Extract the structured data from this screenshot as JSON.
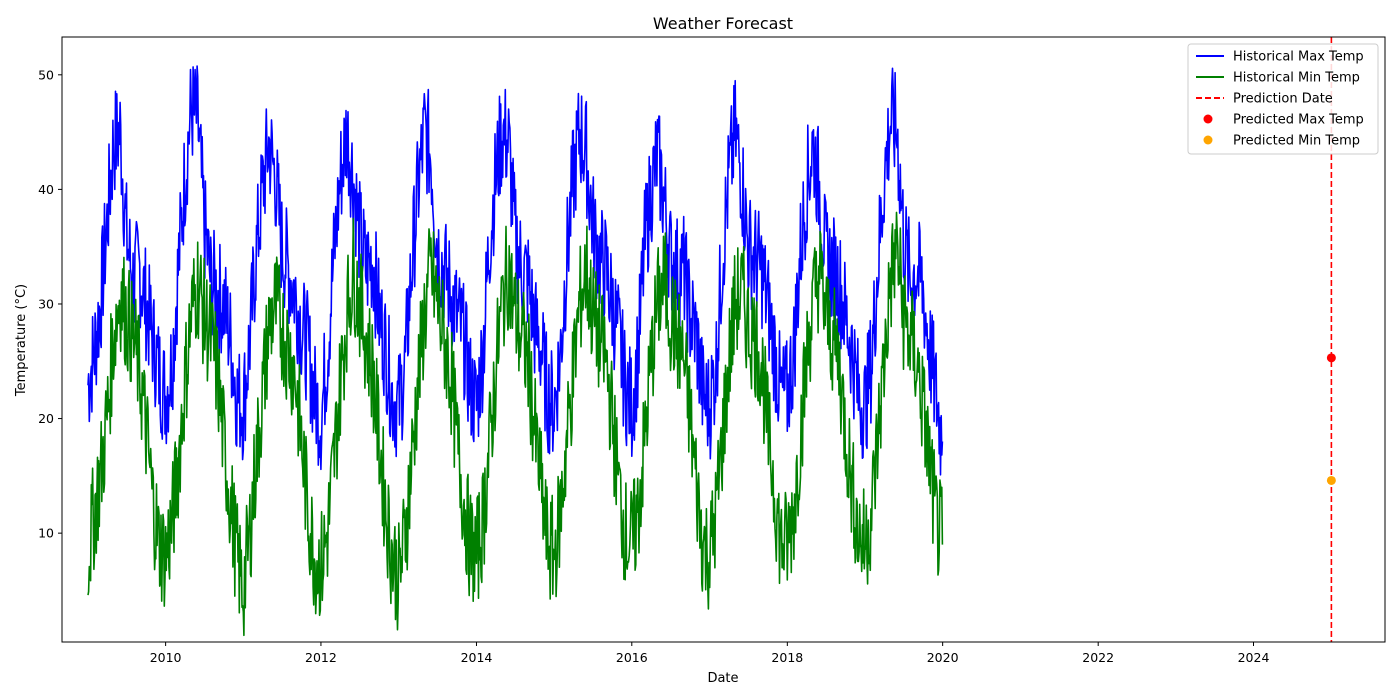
{
  "chart_data": {
    "type": "line",
    "title": "Weather Forecast",
    "xlabel": "Date",
    "ylabel": "Temperature (°C)",
    "xlim": [
      "2008-09-01",
      "2025-09-10"
    ],
    "ylim": [
      0.5,
      53.3
    ],
    "x_ticks": [
      "2010",
      "2012",
      "2014",
      "2016",
      "2018",
      "2020",
      "2022",
      "2024"
    ],
    "y_ticks": [
      10,
      20,
      30,
      40,
      50
    ],
    "grid": false,
    "legend_position": "top-right",
    "series": [
      {
        "name": "Historical Max Temp",
        "style": "line",
        "color": "#0000ff",
        "x": [
          "2009-01-01",
          "2009-02-01",
          "2009-03-01",
          "2009-04-01",
          "2009-05-01",
          "2009-06-01",
          "2009-07-01",
          "2009-08-01",
          "2009-09-01",
          "2009-10-01",
          "2009-11-01",
          "2009-12-01",
          "2010-01-01",
          "2010-02-01",
          "2010-03-01",
          "2010-04-01",
          "2010-05-01",
          "2010-06-01",
          "2010-07-01",
          "2010-08-01",
          "2010-09-01",
          "2010-10-01",
          "2010-11-01",
          "2010-12-01",
          "2011-01-01",
          "2011-02-01",
          "2011-03-01",
          "2011-04-01",
          "2011-05-01",
          "2011-06-01",
          "2011-07-01",
          "2011-08-01",
          "2011-09-01",
          "2011-10-01",
          "2011-11-01",
          "2011-12-01",
          "2012-01-01",
          "2012-02-01",
          "2012-03-01",
          "2012-04-01",
          "2012-05-01",
          "2012-06-01",
          "2012-07-01",
          "2012-08-01",
          "2012-09-01",
          "2012-10-01",
          "2012-11-01",
          "2012-12-01",
          "2013-01-01",
          "2013-02-01",
          "2013-03-01",
          "2013-04-01",
          "2013-05-01",
          "2013-06-01",
          "2013-07-01",
          "2013-08-01",
          "2013-09-01",
          "2013-10-01",
          "2013-11-01",
          "2013-12-01",
          "2014-01-01",
          "2014-02-01",
          "2014-03-01",
          "2014-04-01",
          "2014-05-01",
          "2014-06-01",
          "2014-07-01",
          "2014-08-01",
          "2014-09-01",
          "2014-10-01",
          "2014-11-01",
          "2014-12-01",
          "2015-01-01",
          "2015-02-01",
          "2015-03-01",
          "2015-04-01",
          "2015-05-01",
          "2015-06-01",
          "2015-07-01",
          "2015-08-01",
          "2015-09-01",
          "2015-10-01",
          "2015-11-01",
          "2015-12-01",
          "2016-01-01",
          "2016-02-01",
          "2016-03-01",
          "2016-04-01",
          "2016-05-01",
          "2016-06-01",
          "2016-07-01",
          "2016-08-01",
          "2016-09-01",
          "2016-10-01",
          "2016-11-01",
          "2016-12-01",
          "2017-01-01",
          "2017-02-01",
          "2017-03-01",
          "2017-04-01",
          "2017-05-01",
          "2017-06-01",
          "2017-07-01",
          "2017-08-01",
          "2017-09-01",
          "2017-10-01",
          "2017-11-01",
          "2017-12-01",
          "2018-01-01",
          "2018-02-01",
          "2018-03-01",
          "2018-04-01",
          "2018-05-01",
          "2018-06-01",
          "2018-07-01",
          "2018-08-01",
          "2018-09-01",
          "2018-10-01",
          "2018-11-01",
          "2018-12-01",
          "2019-01-01",
          "2019-02-01",
          "2019-03-01",
          "2019-04-01",
          "2019-05-01",
          "2019-06-01",
          "2019-07-01",
          "2019-08-01",
          "2019-09-01",
          "2019-10-01",
          "2019-11-01",
          "2019-12-01",
          "2019-12-31"
        ],
        "values": [
          23,
          26,
          30,
          37,
          44,
          45,
          36,
          32,
          33,
          30,
          27,
          24,
          22,
          25,
          33,
          41,
          47,
          46,
          37,
          32,
          31,
          30,
          27,
          22,
          21,
          27,
          34,
          40,
          44,
          41,
          35,
          33,
          31,
          28,
          26,
          22,
          20,
          26,
          34,
          41,
          45,
          41,
          36,
          33,
          34,
          29,
          26,
          22,
          21,
          25,
          33,
          40,
          45,
          43,
          35,
          33,
          31,
          29,
          27,
          23,
          21,
          26,
          35,
          41,
          45,
          44,
          36,
          33,
          32,
          28,
          26,
          22,
          21,
          26,
          34,
          41,
          45,
          43,
          37,
          34,
          33,
          30,
          27,
          23,
          21,
          26,
          35,
          40,
          43,
          39,
          34,
          33,
          33,
          29,
          27,
          22,
          21,
          25,
          34,
          41,
          45,
          41,
          35,
          34,
          33,
          30,
          26,
          22,
          22,
          26,
          34,
          40,
          44,
          40,
          34,
          33,
          32,
          29,
          26,
          22,
          21,
          25,
          33,
          41,
          46,
          45,
          36,
          32,
          33,
          31,
          26,
          22,
          18
        ]
      },
      {
        "name": "Historical Min Temp",
        "style": "line",
        "color": "#008000",
        "x": [
          "2009-01-01",
          "2009-02-01",
          "2009-03-01",
          "2009-04-01",
          "2009-05-01",
          "2009-06-01",
          "2009-07-01",
          "2009-08-01",
          "2009-09-01",
          "2009-10-01",
          "2009-11-01",
          "2009-12-01",
          "2010-01-01",
          "2010-02-01",
          "2010-03-01",
          "2010-04-01",
          "2010-05-01",
          "2010-06-01",
          "2010-07-01",
          "2010-08-01",
          "2010-09-01",
          "2010-10-01",
          "2010-11-01",
          "2010-12-01",
          "2011-01-01",
          "2011-02-01",
          "2011-03-01",
          "2011-04-01",
          "2011-05-01",
          "2011-06-01",
          "2011-07-01",
          "2011-08-01",
          "2011-09-01",
          "2011-10-01",
          "2011-11-01",
          "2011-12-01",
          "2012-01-01",
          "2012-02-01",
          "2012-03-01",
          "2012-04-01",
          "2012-05-01",
          "2012-06-01",
          "2012-07-01",
          "2012-08-01",
          "2012-09-01",
          "2012-10-01",
          "2012-11-01",
          "2012-12-01",
          "2013-01-01",
          "2013-02-01",
          "2013-03-01",
          "2013-04-01",
          "2013-05-01",
          "2013-06-01",
          "2013-07-01",
          "2013-08-01",
          "2013-09-01",
          "2013-10-01",
          "2013-11-01",
          "2013-12-01",
          "2014-01-01",
          "2014-02-01",
          "2014-03-01",
          "2014-04-01",
          "2014-05-01",
          "2014-06-01",
          "2014-07-01",
          "2014-08-01",
          "2014-09-01",
          "2014-10-01",
          "2014-11-01",
          "2014-12-01",
          "2015-01-01",
          "2015-02-01",
          "2015-03-01",
          "2015-04-01",
          "2015-05-01",
          "2015-06-01",
          "2015-07-01",
          "2015-08-01",
          "2015-09-01",
          "2015-10-01",
          "2015-11-01",
          "2015-12-01",
          "2016-01-01",
          "2016-02-01",
          "2016-03-01",
          "2016-04-01",
          "2016-05-01",
          "2016-06-01",
          "2016-07-01",
          "2016-08-01",
          "2016-09-01",
          "2016-10-01",
          "2016-11-01",
          "2016-12-01",
          "2017-01-01",
          "2017-02-01",
          "2017-03-01",
          "2017-04-01",
          "2017-05-01",
          "2017-06-01",
          "2017-07-01",
          "2017-08-01",
          "2017-09-01",
          "2017-10-01",
          "2017-11-01",
          "2017-12-01",
          "2018-01-01",
          "2018-02-01",
          "2018-03-01",
          "2018-04-01",
          "2018-05-01",
          "2018-06-01",
          "2018-07-01",
          "2018-08-01",
          "2018-09-01",
          "2018-10-01",
          "2018-11-01",
          "2018-12-01",
          "2019-01-01",
          "2019-02-01",
          "2019-03-01",
          "2019-04-01",
          "2019-05-01",
          "2019-06-01",
          "2019-07-01",
          "2019-08-01",
          "2019-09-01",
          "2019-10-01",
          "2019-11-01",
          "2019-12-01",
          "2019-12-31"
        ],
        "values": [
          8,
          12,
          15,
          20,
          27,
          31,
          29,
          27,
          24,
          19,
          13,
          9,
          8,
          11,
          16,
          23,
          29,
          32,
          29,
          27,
          24,
          18,
          13,
          8,
          5,
          10,
          16,
          22,
          28,
          30,
          28,
          26,
          24,
          18,
          12,
          8,
          7,
          10,
          16,
          23,
          29,
          33,
          30,
          27,
          24,
          18,
          12,
          8,
          6,
          10,
          16,
          23,
          29,
          33,
          30,
          27,
          24,
          18,
          13,
          9,
          8,
          11,
          17,
          24,
          30,
          33,
          29,
          27,
          25,
          19,
          14,
          9,
          8,
          12,
          18,
          24,
          30,
          33,
          29,
          27,
          25,
          20,
          14,
          10,
          9,
          12,
          18,
          25,
          30,
          32,
          29,
          27,
          25,
          20,
          14,
          9,
          8,
          12,
          18,
          25,
          30,
          31,
          28,
          27,
          25,
          19,
          14,
          9,
          9,
          12,
          18,
          25,
          30,
          33,
          29,
          27,
          25,
          19,
          14,
          10,
          9,
          12,
          18,
          25,
          32,
          35,
          29,
          27,
          25,
          21,
          16,
          11,
          9
        ]
      },
      {
        "name": "Prediction Date",
        "style": "dashed-vertical-line",
        "color": "#ff0000",
        "x": "2025-01-01"
      },
      {
        "name": "Predicted Max Temp",
        "style": "marker",
        "color": "#ff0000",
        "x": "2025-01-01",
        "value": 25.3
      },
      {
        "name": "Predicted Min Temp",
        "style": "marker",
        "color": "#ffa500",
        "x": "2025-01-01",
        "value": 14.6
      }
    ]
  }
}
